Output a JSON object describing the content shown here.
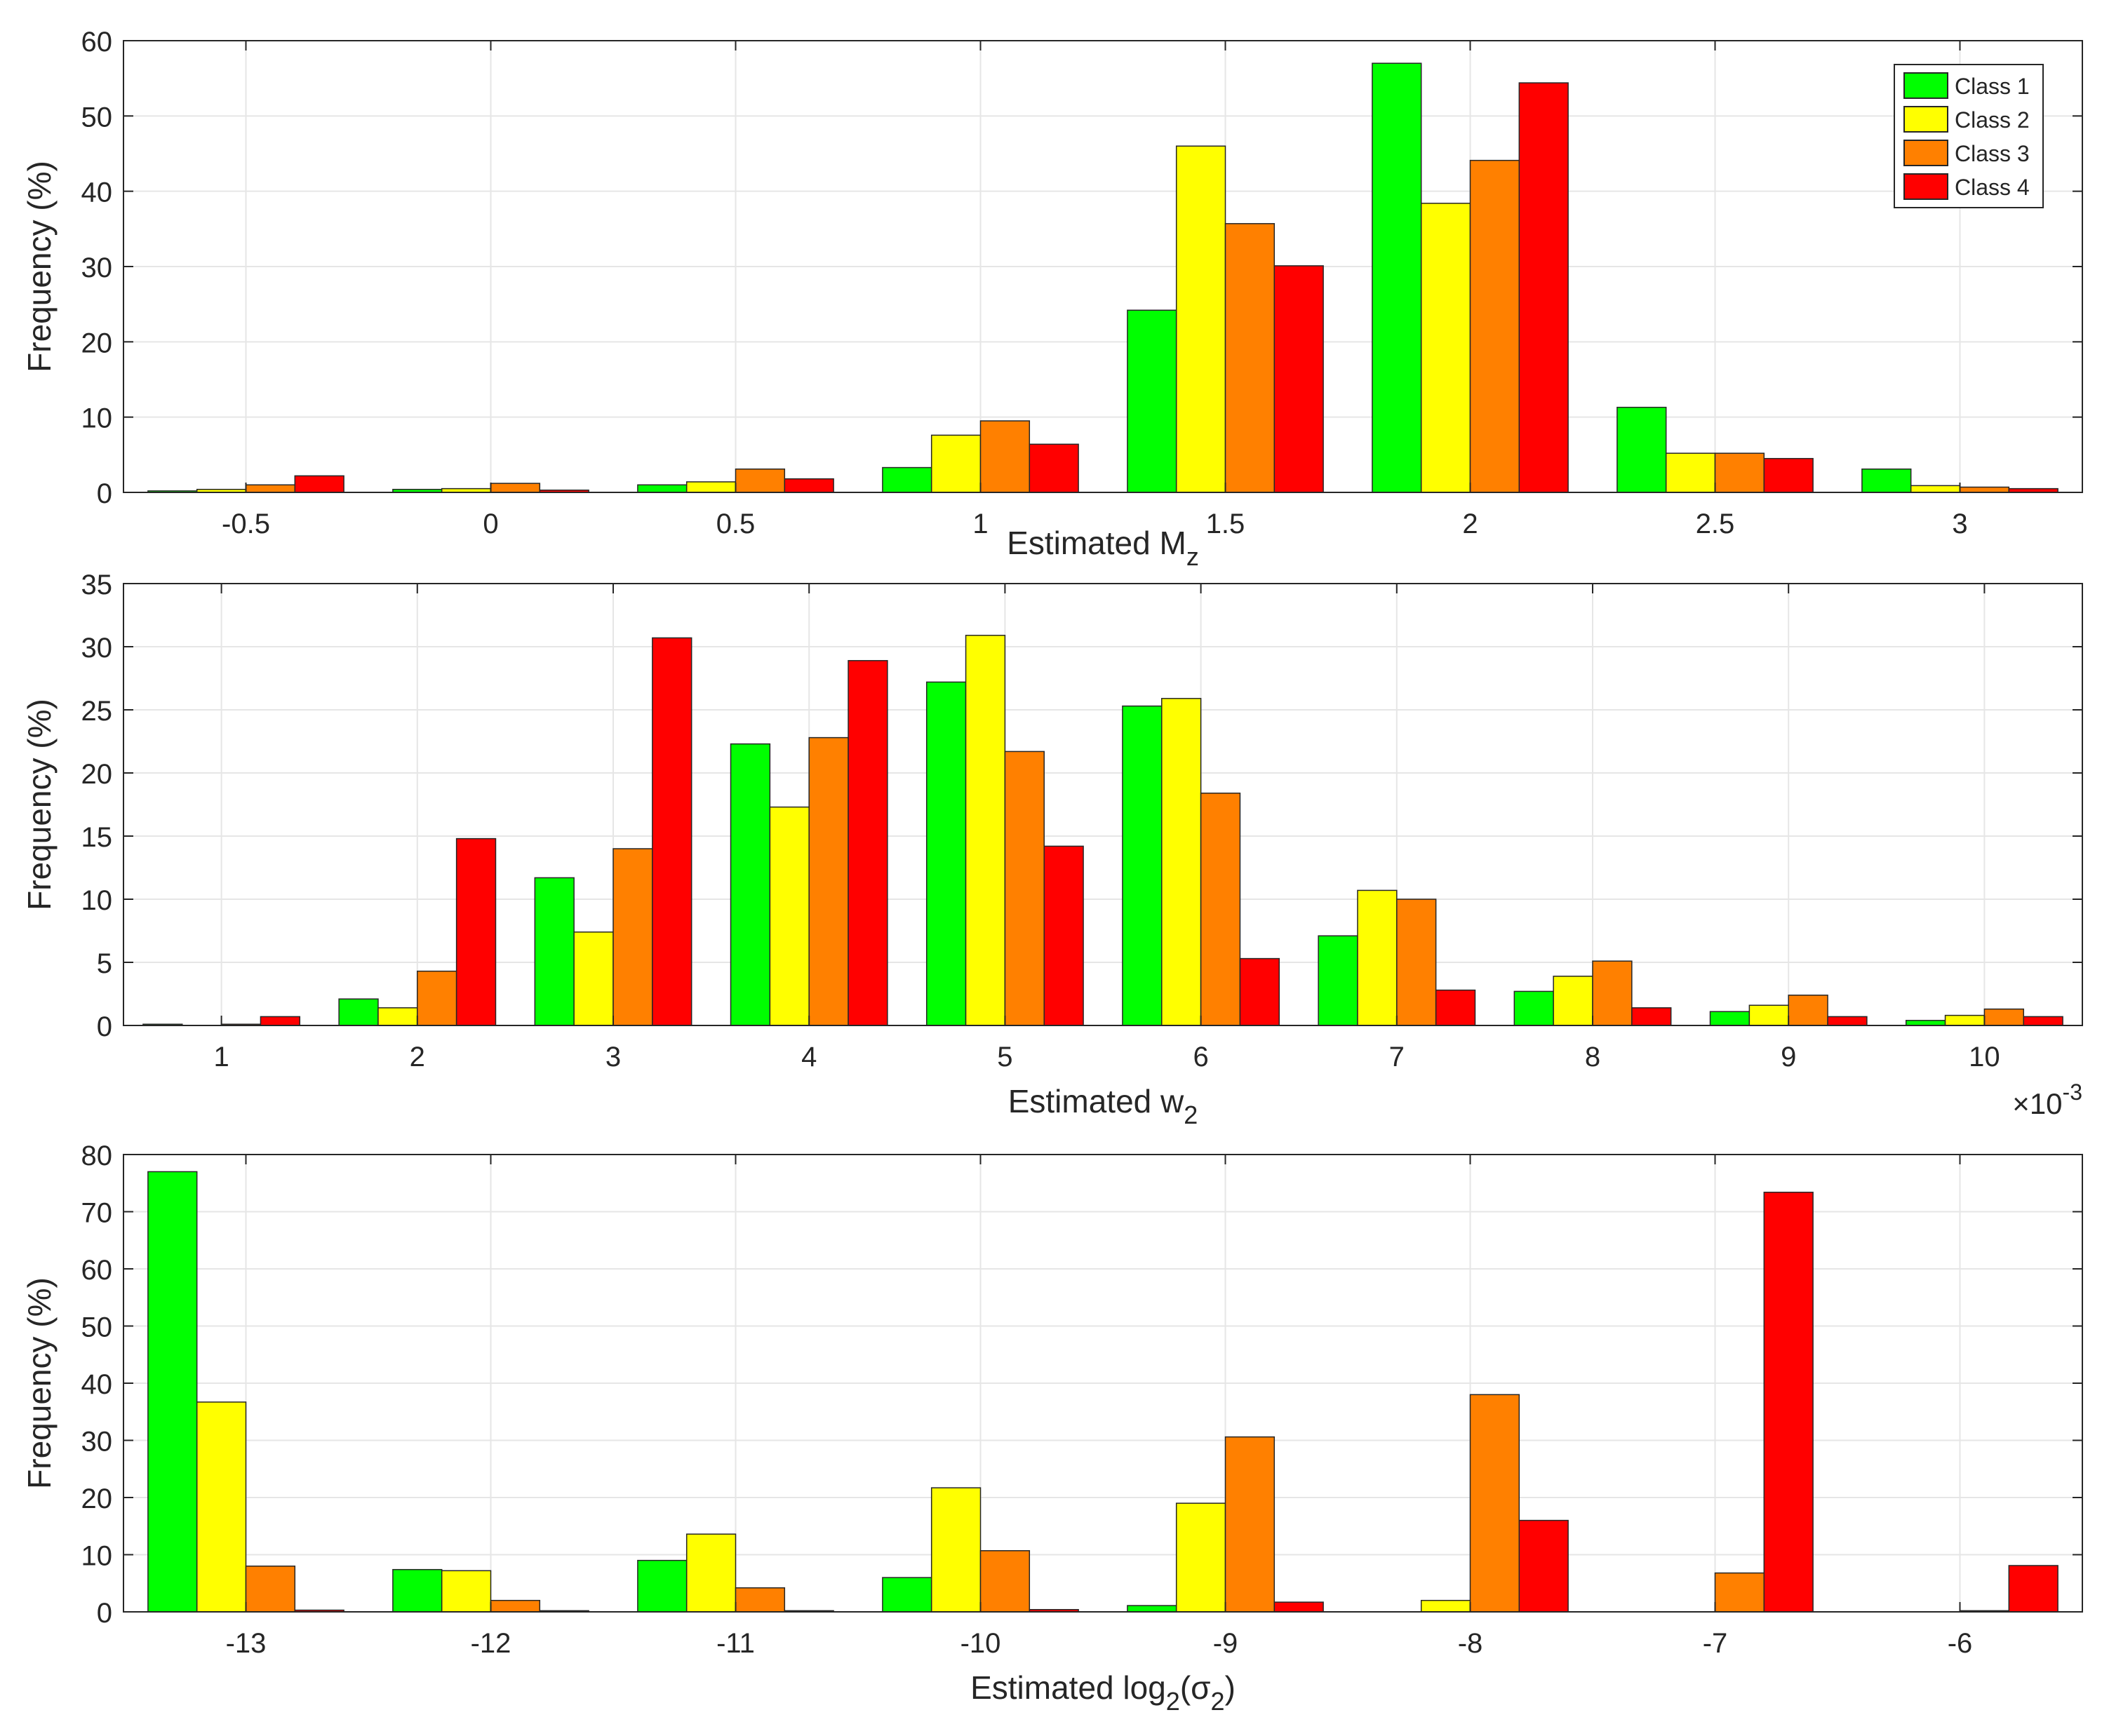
{
  "legend": {
    "labels": [
      "Class 1",
      "Class 2",
      "Class 3",
      "Class 4"
    ],
    "colors": [
      "#00ff00",
      "#ffff00",
      "#ff8000",
      "#ff0000"
    ],
    "location": "top-right"
  },
  "chart_data": [
    {
      "type": "bar",
      "title": "",
      "xlabel": "Estimated M",
      "xlabel_sub": "z",
      "xlabel_suffix": "",
      "ylabel": "Frequency (%)",
      "ylim": [
        0,
        60
      ],
      "yticks": [
        "0",
        "10",
        "20",
        "30",
        "40",
        "50",
        "60"
      ],
      "categories": [
        "-0.5",
        "0",
        "0.5",
        "1",
        "1.5",
        "2",
        "2.5",
        "3"
      ],
      "grid": true,
      "series": [
        {
          "name": "Class 1",
          "color": "#00ff00",
          "values": [
            0.2,
            0.4,
            1.0,
            3.3,
            24.2,
            57.0,
            11.3,
            3.1
          ]
        },
        {
          "name": "Class 2",
          "color": "#ffff00",
          "values": [
            0.4,
            0.5,
            1.4,
            7.6,
            46.0,
            38.4,
            5.2,
            0.9
          ]
        },
        {
          "name": "Class 3",
          "color": "#ff8000",
          "values": [
            1.0,
            1.2,
            3.1,
            9.5,
            35.7,
            44.1,
            5.2,
            0.7
          ]
        },
        {
          "name": "Class 4",
          "color": "#ff0000",
          "values": [
            2.2,
            0.3,
            1.8,
            6.4,
            30.1,
            54.4,
            4.5,
            0.5
          ]
        }
      ]
    },
    {
      "type": "bar",
      "title": "",
      "xlabel": "Estimated w",
      "xlabel_sub": "2",
      "xlabel_suffix": "",
      "ylabel": "Frequency (%)",
      "ylim": [
        0,
        35
      ],
      "yticks": [
        "0",
        "5",
        "10",
        "15",
        "20",
        "25",
        "30",
        "35"
      ],
      "categories": [
        "1",
        "2",
        "3",
        "4",
        "5",
        "6",
        "7",
        "8",
        "9",
        "10"
      ],
      "axis_exponent_base": "×10",
      "axis_exponent": "-3",
      "grid": true,
      "series": [
        {
          "name": "Class 1",
          "color": "#00ff00",
          "values": [
            0.1,
            2.1,
            11.7,
            22.3,
            27.2,
            25.3,
            7.1,
            2.7,
            1.1,
            0.4
          ]
        },
        {
          "name": "Class 2",
          "color": "#ffff00",
          "values": [
            0.0,
            1.4,
            7.4,
            17.3,
            30.9,
            25.9,
            10.7,
            3.9,
            1.6,
            0.8
          ]
        },
        {
          "name": "Class 3",
          "color": "#ff8000",
          "values": [
            0.1,
            4.3,
            14.0,
            22.8,
            21.7,
            18.4,
            10.0,
            5.1,
            2.4,
            1.3
          ]
        },
        {
          "name": "Class 4",
          "color": "#ff0000",
          "values": [
            0.7,
            14.8,
            30.7,
            28.9,
            14.2,
            5.3,
            2.8,
            1.4,
            0.7,
            0.7
          ]
        }
      ]
    },
    {
      "type": "bar",
      "title": "",
      "xlabel": "Estimated log",
      "xlabel_sub": "2",
      "xlabel_suffix": "(σ",
      "xlabel_sub2": "2",
      "xlabel_end": ")",
      "ylabel": "Frequency (%)",
      "ylim": [
        0,
        80
      ],
      "yticks": [
        "0",
        "10",
        "20",
        "30",
        "40",
        "50",
        "60",
        "70",
        "80"
      ],
      "categories": [
        "-13",
        "-12",
        "-11",
        "-10",
        "-9",
        "-8",
        "-7",
        "-6"
      ],
      "grid": true,
      "series": [
        {
          "name": "Class 1",
          "color": "#00ff00",
          "values": [
            77.0,
            7.4,
            9.0,
            6.0,
            1.1,
            0.0,
            0.0,
            0.0
          ]
        },
        {
          "name": "Class 2",
          "color": "#ffff00",
          "values": [
            36.7,
            7.2,
            13.6,
            21.7,
            19.0,
            2.0,
            0.0,
            0.0
          ]
        },
        {
          "name": "Class 3",
          "color": "#ff8000",
          "values": [
            8.0,
            2.0,
            4.2,
            10.7,
            30.6,
            38.0,
            6.8,
            0.2
          ]
        },
        {
          "name": "Class 4",
          "color": "#ff0000",
          "values": [
            0.3,
            0.2,
            0.2,
            0.4,
            1.7,
            16.0,
            73.4,
            8.1
          ]
        }
      ]
    }
  ]
}
